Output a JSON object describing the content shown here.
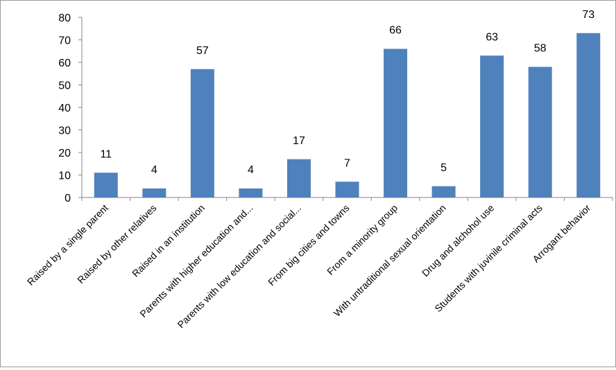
{
  "chart_data": {
    "type": "bar",
    "categories": [
      "Raised by a single parent",
      "Raised by other relatives",
      "Raised in an institution",
      "Parents with higher education and...",
      "Parents with low education and social...",
      "From big cities and towns",
      "From a minority group",
      "With untraditional sexual orientation",
      "Drug and alchohol use",
      "Students with juvinile criminal acts",
      "Arrogant behavior"
    ],
    "values": [
      11,
      4,
      57,
      4,
      17,
      7,
      66,
      5,
      63,
      58,
      73
    ],
    "data_labels": [
      "11",
      "4",
      "57",
      "4",
      "17",
      "7",
      "66",
      "5",
      "63",
      "58",
      "73"
    ],
    "yticks": [
      "0",
      "10",
      "20",
      "30",
      "40",
      "50",
      "60",
      "70",
      "80"
    ],
    "ylim": [
      0,
      80
    ],
    "bar_color": "#4f81bd",
    "grid": false,
    "legend": "none"
  }
}
